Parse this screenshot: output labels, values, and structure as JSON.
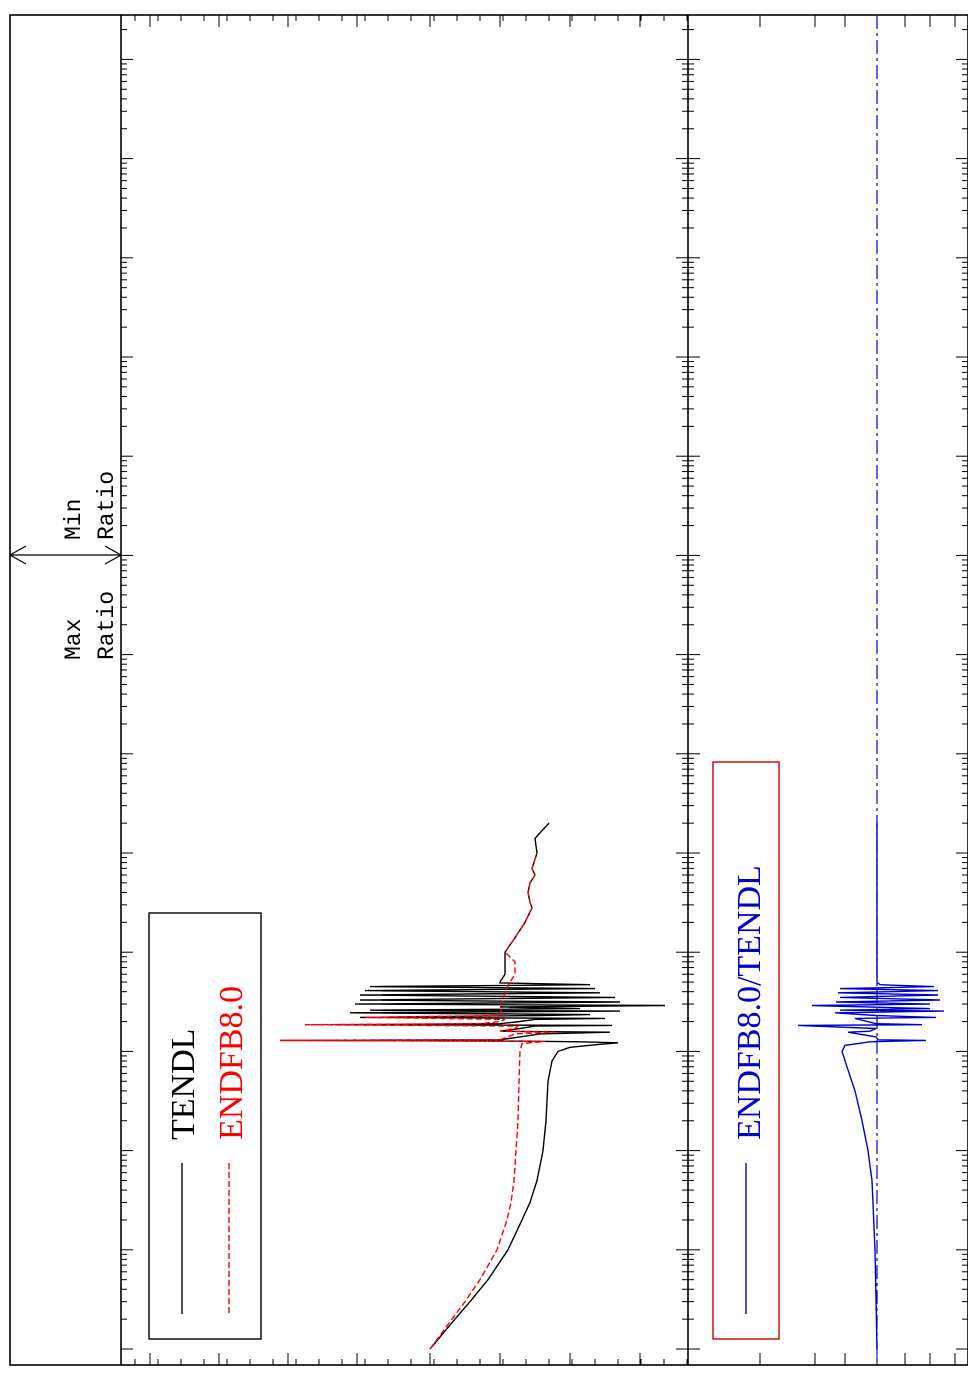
{
  "chart_data": [
    {
      "type": "line",
      "orientation": "rotated-90",
      "x_scale": "log",
      "y_scale": "log",
      "grid": false,
      "legend_placement": "bottom-left",
      "series": [
        {
          "name": "TENDL",
          "color": "#000000",
          "style": "solid",
          "points": [
            [
              1.0,
              430
            ],
            [
              2.0,
              455
            ],
            [
              3.0,
              470
            ],
            [
              5.0,
              488
            ],
            [
              10.0,
              508
            ],
            [
              20.0,
              522
            ],
            [
              30.0,
              530
            ],
            [
              50.0,
              537
            ],
            [
              100.0,
              543
            ],
            [
              200.0,
              546
            ],
            [
              500.0,
              548
            ],
            [
              800.0,
              552
            ],
            [
              1000.0,
              558
            ],
            [
              1100.0,
              570
            ],
            [
              1180.0,
              600
            ],
            [
              1220.0,
              618
            ],
            [
              1250.0,
              580
            ],
            [
              1270.0,
              520
            ],
            [
              1290.0,
              280
            ],
            [
              1310.0,
              500
            ],
            [
              1400.0,
              520
            ],
            [
              1500.0,
              540
            ],
            [
              1560.0,
              610
            ],
            [
              1600.0,
              500
            ],
            [
              1700.0,
              520
            ],
            [
              1800.0,
              535
            ],
            [
              1830.0,
              612
            ],
            [
              1860.0,
              335
            ],
            [
              1900.0,
              500
            ],
            [
              2000.0,
              520
            ],
            [
              2100.0,
              535
            ],
            [
              2150.0,
              605
            ],
            [
              2200.0,
              360
            ],
            [
              2300.0,
              540
            ],
            [
              2350.0,
              590
            ],
            [
              2450.0,
              350
            ],
            [
              2550.0,
              620
            ],
            [
              2600.0,
              370
            ],
            [
              2700.0,
              580
            ],
            [
              2800.0,
              500
            ],
            [
              2900.0,
              665
            ],
            [
              3000.0,
              355
            ],
            [
              3150.0,
              620
            ],
            [
              3300.0,
              360
            ],
            [
              3500.0,
              615
            ],
            [
              3700.0,
              360
            ],
            [
              3900.0,
              600
            ],
            [
              4100.0,
              365
            ],
            [
              4300.0,
              595
            ],
            [
              4500.0,
              370
            ],
            [
              4700.0,
              590
            ],
            [
              4900.0,
              500
            ],
            [
              5000.0,
              500
            ],
            [
              6000.0,
              505
            ],
            [
              8000.0,
              505
            ],
            [
              10000.0,
              505
            ],
            [
              14000.0,
              515
            ],
            [
              20000.0,
              525
            ],
            [
              28000.0,
              532
            ],
            [
              32000.0,
              530
            ],
            [
              40000.0,
              528
            ],
            [
              50000.0,
              530
            ],
            [
              60000.0,
              535
            ],
            [
              70000.0,
              532
            ],
            [
              100000.0,
              537
            ],
            [
              140000.0,
              535
            ],
            [
              160000.0,
              540
            ],
            [
              200000.0,
              549
            ]
          ]
        },
        {
          "name": "ENDFB8.0",
          "color": "#ff0000",
          "style": "dashed",
          "points": [
            [
              1.0,
              430
            ],
            [
              2.0,
              452
            ],
            [
              3.0,
              465
            ],
            [
              5.0,
              480
            ],
            [
              10.0,
              497
            ],
            [
              20.0,
              507
            ],
            [
              30.0,
              511
            ],
            [
              50.0,
              514
            ],
            [
              100.0,
              516
            ],
            [
              200.0,
              518
            ],
            [
              500.0,
              519
            ],
            [
              1000.0,
              520
            ],
            [
              1200.0,
              522
            ],
            [
              1260.0,
              545
            ],
            [
              1290.0,
              280
            ],
            [
              1310.0,
              500
            ],
            [
              1500.0,
              515
            ],
            [
              1560.0,
              555
            ],
            [
              1600.0,
              500
            ],
            [
              1700.0,
              515
            ],
            [
              1800.0,
              518
            ],
            [
              1860.0,
              305
            ],
            [
              1900.0,
              480
            ],
            [
              2000.0,
              500
            ],
            [
              2100.0,
              505
            ],
            [
              2200.0,
              365
            ],
            [
              2300.0,
              500
            ],
            [
              3000.0,
              502
            ],
            [
              4000.0,
              505
            ],
            [
              5000.0,
              510
            ],
            [
              6000.0,
              515
            ],
            [
              8000.0,
              515
            ],
            [
              10000.0,
              505
            ],
            [
              14000.0,
              515
            ],
            [
              20000.0,
              525
            ],
            [
              28000.0,
              532
            ],
            [
              32000.0,
              530
            ],
            [
              40000.0,
              528
            ],
            [
              50000.0,
              530
            ],
            [
              60000.0,
              535
            ],
            [
              70000.0,
              532
            ],
            [
              100000.0,
              537
            ]
          ]
        }
      ]
    },
    {
      "type": "line",
      "orientation": "rotated-90",
      "x_scale": "log",
      "y_scale": "log",
      "grid": false,
      "legend_placement": "bottom-left",
      "reference_line": 1.0,
      "series": [
        {
          "name": "ENDFB8.0/TENDL",
          "color": "#0000cc",
          "style": "solid",
          "points": [
            [
              1.0,
              877
            ],
            [
              10.0,
              875
            ],
            [
              50.0,
              872
            ],
            [
              100.0,
              868
            ],
            [
              200.0,
              862
            ],
            [
              400.0,
              855
            ],
            [
              700.0,
              847
            ],
            [
              1000.0,
              842
            ],
            [
              1150.0,
              845
            ],
            [
              1250.0,
              870
            ],
            [
              1290.0,
              926
            ],
            [
              1310.0,
              878
            ],
            [
              1400.0,
              876
            ],
            [
              1560.0,
              848
            ],
            [
              1600.0,
              870
            ],
            [
              1700.0,
              876
            ],
            [
              1830.0,
              798
            ],
            [
              1860.0,
              922
            ],
            [
              1900.0,
              876
            ],
            [
              2150.0,
              855
            ],
            [
              2200.0,
              936
            ],
            [
              2300.0,
              876
            ],
            [
              2450.0,
              835
            ],
            [
              2550.0,
              944
            ],
            [
              2600.0,
              840
            ],
            [
              2700.0,
              930
            ],
            [
              2900.0,
              812
            ],
            [
              3000.0,
              930
            ],
            [
              3150.0,
              836
            ],
            [
              3300.0,
              940
            ],
            [
              3500.0,
              840
            ],
            [
              3700.0,
              938
            ],
            [
              3900.0,
              838
            ],
            [
              4100.0,
              938
            ],
            [
              4300.0,
              840
            ],
            [
              4500.0,
              934
            ],
            [
              4700.0,
              880
            ],
            [
              5000.0,
              877
            ],
            [
              10000.0,
              877
            ],
            [
              100000.0,
              877
            ],
            [
              200000.0,
              877
            ]
          ]
        }
      ]
    }
  ],
  "legend_top": {
    "items": [
      "TENDL",
      "ENDFB8.0"
    ]
  },
  "legend_bottom": {
    "items": [
      "ENDFB8.0/TENDL"
    ]
  },
  "annotations": {
    "max_ratio": "Max\nRatio",
    "min_ratio": "Min\nRatio"
  }
}
